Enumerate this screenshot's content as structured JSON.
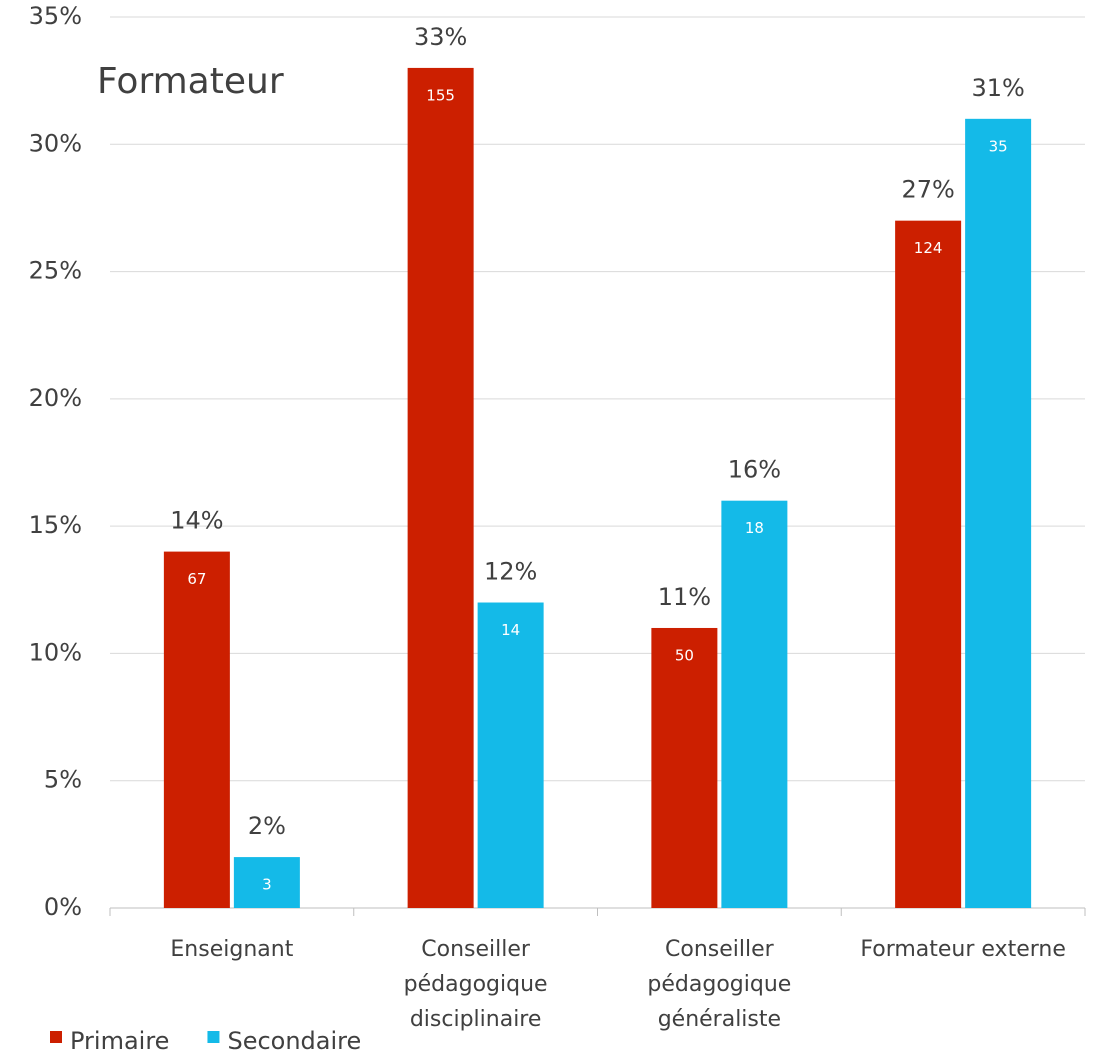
{
  "chart_data": {
    "type": "bar",
    "title": "Formateur",
    "categories": [
      [
        "Enseignant"
      ],
      [
        "Conseiller",
        "pédagogique",
        "disciplinaire"
      ],
      [
        "Conseiller",
        "pédagogique",
        "généraliste"
      ],
      [
        "Formateur externe"
      ]
    ],
    "series": [
      {
        "name": "Primaire",
        "color": "#cc1f00",
        "values": [
          14,
          33,
          11,
          27
        ],
        "value_labels": [
          "14%",
          "33%",
          "11%",
          "27%"
        ],
        "counts": [
          67,
          155,
          50,
          124
        ]
      },
      {
        "name": "Secondaire",
        "color": "#14bae8",
        "values": [
          2,
          12,
          16,
          31
        ],
        "value_labels": [
          "2%",
          "12%",
          "16%",
          "31%"
        ],
        "counts": [
          3,
          14,
          18,
          35
        ]
      }
    ],
    "ylim": [
      0,
      35
    ],
    "yticks": [
      {
        "value": 0,
        "label": "0%"
      },
      {
        "value": 5,
        "label": "5%"
      },
      {
        "value": 10,
        "label": "10%"
      },
      {
        "value": 15,
        "label": "15%"
      },
      {
        "value": 20,
        "label": "20%"
      },
      {
        "value": 25,
        "label": "25%"
      },
      {
        "value": 30,
        "label": "30%"
      },
      {
        "value": 35,
        "label": "35%"
      }
    ],
    "grid": true,
    "legend": "bottom-left"
  }
}
